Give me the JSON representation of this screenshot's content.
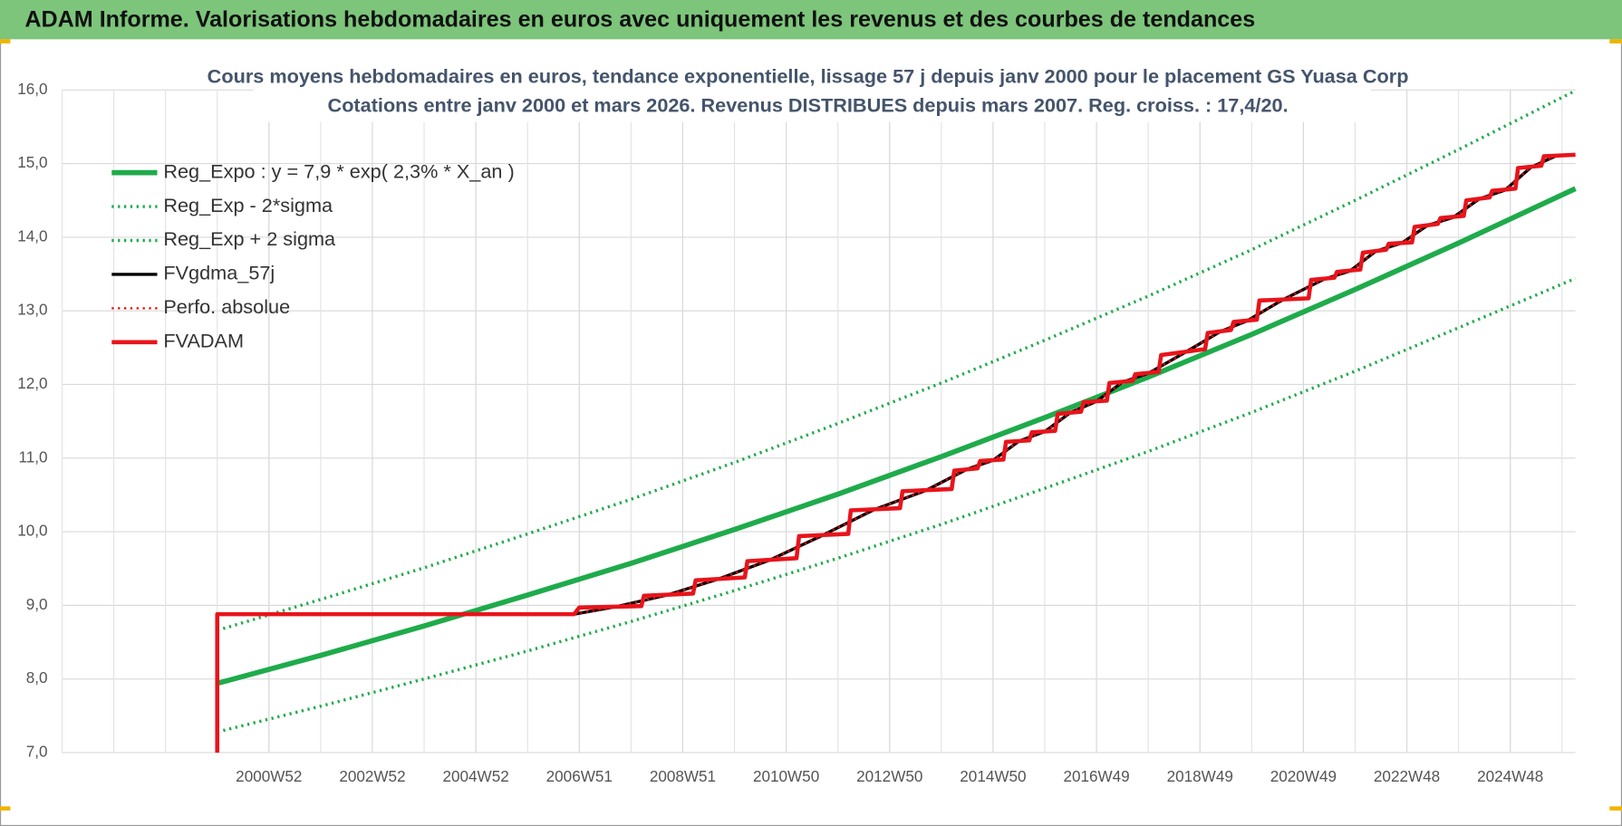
{
  "header": {
    "title": "ADAM Informe. Valorisations hebdomadaires en euros avec uniquement les revenus et des courbes de tendances"
  },
  "chart_data": {
    "type": "line",
    "title": "Cours moyens hebdomadaires en euros, tendance exponentielle, lissage 57 j depuis janv 2000 pour le placement GS Yuasa Corp",
    "subtitle": "Cotations entre janv 2000 et mars 2026. Revenus DISTRIBUES depuis mars 2007. Reg. croiss. : 17,4/20.",
    "xlim": [
      1997,
      2026.26
    ],
    "xticks": [
      {
        "value": 2001,
        "label": "2000W52"
      },
      {
        "value": 2003,
        "label": "2002W52"
      },
      {
        "value": 2005,
        "label": "2004W52"
      },
      {
        "value": 2007,
        "label": "2006W51"
      },
      {
        "value": 2009,
        "label": "2008W51"
      },
      {
        "value": 2011,
        "label": "2010W50"
      },
      {
        "value": 2013,
        "label": "2012W50"
      },
      {
        "value": 2015,
        "label": "2014W50"
      },
      {
        "value": 2017,
        "label": "2016W49"
      },
      {
        "value": 2019,
        "label": "2018W49"
      },
      {
        "value": 2021,
        "label": "2020W49"
      },
      {
        "value": 2023,
        "label": "2022W48"
      },
      {
        "value": 2025,
        "label": "2024W48"
      }
    ],
    "ylim": [
      7,
      16
    ],
    "yticks": [
      {
        "value": 7,
        "label": "7,0"
      },
      {
        "value": 8,
        "label": "8,0"
      },
      {
        "value": 9,
        "label": "9,0"
      },
      {
        "value": 10,
        "label": "10,0"
      },
      {
        "value": 11,
        "label": "11,0"
      },
      {
        "value": 12,
        "label": "12,0"
      },
      {
        "value": 13,
        "label": "13,0"
      },
      {
        "value": 14,
        "label": "14,0"
      },
      {
        "value": 15,
        "label": "15,0"
      },
      {
        "value": 16,
        "label": "16,0"
      }
    ],
    "grid": true,
    "legend": "upper left",
    "series": [
      {
        "name": "Reg_Expo : y = 7,9 * exp( 2,3% *  X_an )",
        "color": "#1fab4b",
        "width": 5,
        "dash": false,
        "x": [
          2000,
          2002,
          2004,
          2006,
          2008,
          2010,
          2012,
          2014,
          2016,
          2018,
          2020,
          2022,
          2024,
          2026.26
        ],
        "values": [
          7.94,
          8.32,
          8.72,
          9.14,
          9.57,
          10.03,
          10.51,
          11.02,
          11.55,
          12.1,
          12.68,
          13.29,
          13.92,
          14.66
        ]
      },
      {
        "name": "Reg_Exp - 2*sigma",
        "color": "#1fab4b",
        "width": 3,
        "dash": true,
        "x": [
          2000,
          2002,
          2004,
          2006,
          2008,
          2010,
          2012,
          2014,
          2016,
          2018,
          2020,
          2022,
          2024,
          2026.26
        ],
        "values": [
          7.28,
          7.63,
          8.0,
          8.38,
          8.78,
          9.2,
          9.64,
          10.1,
          10.59,
          11.09,
          11.62,
          12.18,
          12.77,
          13.44
        ]
      },
      {
        "name": "Reg_Exp + 2 sigma",
        "color": "#1fab4b",
        "width": 3,
        "dash": true,
        "x": [
          2000,
          2002,
          2004,
          2006,
          2008,
          2010,
          2012,
          2014,
          2016,
          2018,
          2020,
          2022,
          2024,
          2026.26
        ],
        "values": [
          8.66,
          9.08,
          9.51,
          9.97,
          10.44,
          10.94,
          11.47,
          12.02,
          12.6,
          13.2,
          13.83,
          14.5,
          15.19,
          15.99
        ]
      },
      {
        "name": "FVgdma_57j",
        "color": "#000000",
        "width": 3,
        "dash": false,
        "x": [
          2006.9,
          2007.7,
          2008.7,
          2009.7,
          2010.7,
          2011.7,
          2012.7,
          2013.7,
          2014.5,
          2015.0,
          2015.5,
          2016.0,
          2016.5,
          2017.0,
          2017.5,
          2018.0,
          2018.7,
          2019.4,
          2019.9,
          2020.6,
          2021.4,
          2021.9,
          2022.4,
          2022.9,
          2023.4,
          2023.9,
          2024.4,
          2024.9,
          2025.4,
          2025.9
        ],
        "values": [
          8.88,
          8.98,
          9.14,
          9.36,
          9.62,
          9.95,
          10.3,
          10.56,
          10.85,
          10.97,
          11.23,
          11.36,
          11.62,
          11.77,
          12.03,
          12.15,
          12.43,
          12.72,
          12.86,
          13.15,
          13.43,
          13.54,
          13.81,
          13.92,
          14.16,
          14.27,
          14.52,
          14.64,
          14.95,
          15.11
        ]
      },
      {
        "name": "Perfo. absolue",
        "color": "#e00000",
        "width": 2,
        "dash": true,
        "x": [
          2006.9,
          2007.7,
          2008.7,
          2009.7,
          2010.7,
          2011.7,
          2012.7,
          2013.7,
          2014.5,
          2015.0,
          2015.5,
          2016.0,
          2016.5,
          2017.0,
          2017.5,
          2018.0,
          2018.7,
          2019.4,
          2019.9,
          2020.6,
          2021.4,
          2021.9,
          2022.4,
          2022.9,
          2023.4,
          2023.9,
          2024.4,
          2024.9,
          2025.4,
          2025.9
        ],
        "values": [
          8.88,
          8.98,
          9.14,
          9.36,
          9.62,
          9.95,
          10.3,
          10.56,
          10.85,
          10.97,
          11.23,
          11.36,
          11.62,
          11.77,
          12.03,
          12.15,
          12.43,
          12.72,
          12.86,
          13.15,
          13.43,
          13.54,
          13.81,
          13.92,
          14.16,
          14.27,
          14.52,
          14.64,
          14.95,
          15.11
        ]
      },
      {
        "name": "FVADAM",
        "color": "#e8141b",
        "width": 4,
        "dash": false,
        "x": [
          2000,
          2000,
          2006.9,
          2007.0,
          2008.2,
          2008.25,
          2009.2,
          2009.25,
          2010.2,
          2010.25,
          2011.2,
          2011.25,
          2012.2,
          2012.25,
          2013.2,
          2013.25,
          2014.2,
          2014.25,
          2014.7,
          2014.75,
          2015.2,
          2015.25,
          2015.7,
          2015.75,
          2016.2,
          2016.25,
          2016.7,
          2016.75,
          2017.2,
          2017.25,
          2017.7,
          2017.75,
          2018.2,
          2018.25,
          2019.1,
          2019.15,
          2019.6,
          2019.65,
          2020.1,
          2020.15,
          2021.1,
          2021.15,
          2021.6,
          2021.65,
          2022.1,
          2022.15,
          2022.6,
          2022.65,
          2023.1,
          2023.15,
          2023.6,
          2023.65,
          2024.1,
          2024.15,
          2024.6,
          2024.65,
          2025.1,
          2025.15,
          2025.6,
          2025.65,
          2026.26
        ],
        "values": [
          7.0,
          8.88,
          8.88,
          8.97,
          8.99,
          9.13,
          9.16,
          9.34,
          9.38,
          9.6,
          9.64,
          9.94,
          9.97,
          10.29,
          10.32,
          10.55,
          10.58,
          10.83,
          10.86,
          10.96,
          10.98,
          11.22,
          11.24,
          11.35,
          11.37,
          11.6,
          11.63,
          11.76,
          11.78,
          12.02,
          12.05,
          12.14,
          12.17,
          12.4,
          12.48,
          12.7,
          12.74,
          12.85,
          12.88,
          13.14,
          13.17,
          13.42,
          13.45,
          13.53,
          13.56,
          13.79,
          13.83,
          13.91,
          13.93,
          14.14,
          14.18,
          14.26,
          14.29,
          14.5,
          14.54,
          14.63,
          14.66,
          14.94,
          14.97,
          15.1,
          15.12
        ]
      }
    ]
  }
}
